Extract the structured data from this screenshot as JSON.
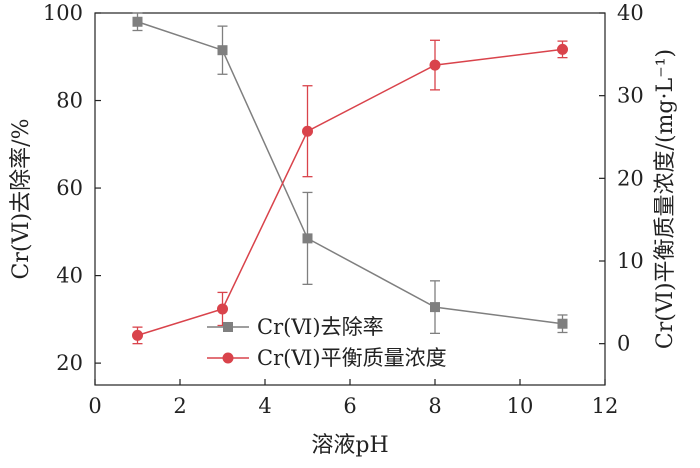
{
  "chart_data": {
    "type": "line",
    "xlabel": "溶液pH",
    "ylabel_left": "Cr(Ⅵ)去除率/%",
    "ylabel_right": "Cr(Ⅵ)平衡质量浓度/(mg·L⁻¹)",
    "xlim": [
      0,
      12
    ],
    "xticks": [
      0,
      2,
      4,
      6,
      8,
      10,
      12
    ],
    "ylim_left": [
      15,
      100
    ],
    "yticks_left": [
      20,
      40,
      60,
      80,
      100
    ],
    "ylim_right": [
      -5,
      40
    ],
    "yticks_right": [
      0,
      10,
      20,
      30,
      40
    ],
    "grid": false,
    "legend_position": "bottom-center",
    "series": [
      {
        "name": "Cr(Ⅵ)去除率",
        "axis": "left",
        "color": "#7f7f7f",
        "marker": "square",
        "x": [
          1,
          3,
          5,
          8,
          11
        ],
        "y": [
          98,
          91.5,
          48.5,
          32.8,
          29
        ],
        "err": [
          2,
          5.5,
          10.5,
          6,
          2
        ]
      },
      {
        "name": "Cr(Ⅵ)平衡质量浓度",
        "axis": "right",
        "color": "#d9434b",
        "marker": "circle",
        "x": [
          1,
          3,
          5,
          8,
          11
        ],
        "y": [
          1,
          4.2,
          25.7,
          33.7,
          35.6
        ],
        "err": [
          1,
          2,
          5.5,
          3,
          1
        ]
      }
    ]
  }
}
